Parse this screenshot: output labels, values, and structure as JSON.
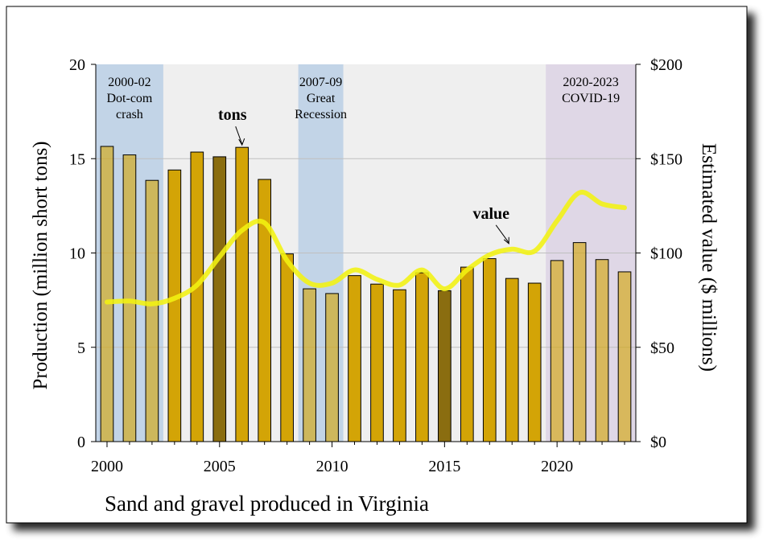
{
  "chart_data": {
    "type": "bar",
    "title": "Sand and gravel produced in Virginia",
    "ylabel": "Production (million short tons)",
    "y2label": "Estimated value ($ millions)",
    "ylim": [
      0,
      20
    ],
    "y2lim": [
      0,
      200
    ],
    "y_ticks": [
      "0",
      "5",
      "10",
      "15",
      "20"
    ],
    "y2_ticks": [
      "$0",
      "$50",
      "$100",
      "$150",
      "$200"
    ],
    "x_ticks": [
      "2000",
      "2005",
      "2010",
      "2015",
      "2020"
    ],
    "grid": true,
    "categories": [
      2000,
      2001,
      2002,
      2003,
      2004,
      2005,
      2006,
      2007,
      2008,
      2009,
      2010,
      2011,
      2012,
      2013,
      2014,
      2015,
      2016,
      2017,
      2018,
      2019,
      2020,
      2021,
      2022,
      2023
    ],
    "series": [
      {
        "name": "tons",
        "axis": "left",
        "values": [
          15.65,
          15.2,
          13.85,
          14.4,
          15.35,
          15.1,
          15.6,
          13.9,
          9.95,
          8.1,
          7.85,
          8.8,
          8.35,
          8.05,
          8.95,
          8.0,
          9.25,
          9.7,
          8.65,
          8.4,
          9.6,
          10.55,
          9.65,
          9.0
        ]
      },
      {
        "name": "value",
        "axis": "right",
        "type": "line",
        "values": [
          74,
          74.5,
          73,
          76,
          83,
          98,
          112,
          116,
          96,
          84,
          84,
          91,
          86,
          83,
          91,
          81,
          91,
          99,
          102,
          101,
          117,
          132,
          126,
          124
        ]
      }
    ],
    "shaded_periods": [
      {
        "label_lines": [
          "2000-02",
          "Dot-com",
          "crash"
        ],
        "from": 1999.5,
        "to": 2002.5,
        "color": "#bdd0e6"
      },
      {
        "label_lines": [
          "2007-09",
          "Great",
          "Recession"
        ],
        "from": 2008.5,
        "to": 2010.5,
        "color": "#bdd0e6"
      },
      {
        "label_lines": [
          "2020-2023",
          "COVID-19"
        ],
        "from": 2019.5,
        "to": 2023.5,
        "color": "#ddd4e4"
      }
    ],
    "annotations": [
      {
        "text": "tons",
        "series": "tons"
      },
      {
        "text": "value",
        "series": "value"
      }
    ],
    "colors": {
      "bar": "#d3a406",
      "bar_highlight": "#8a6d10",
      "line": "#f3f311",
      "plot_bg": "#efefef",
      "gridline": "#bfbfbf"
    },
    "highlight_years": [
      2005,
      2015
    ]
  }
}
